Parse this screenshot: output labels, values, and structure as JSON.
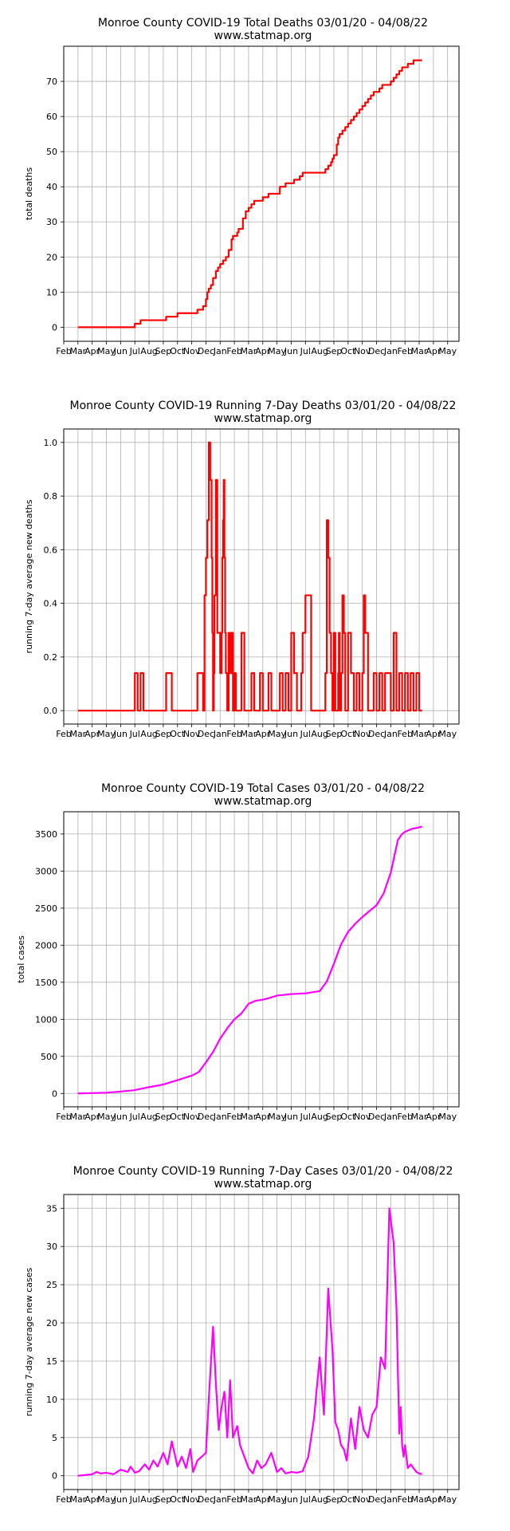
{
  "chart_data": [
    {
      "type": "line",
      "title": "Monroe County COVID-19 Total Deaths 03/01/20 - 04/08/22",
      "subtitle": "www.statmap.org",
      "xlabel": "",
      "ylabel": "total deaths",
      "ylim": [
        -4,
        80
      ],
      "yticks": [
        0,
        10,
        20,
        30,
        40,
        50,
        60,
        70
      ],
      "xlim": [
        -1,
        26.8
      ],
      "xticks": [
        "Feb",
        "Mar",
        "Apr",
        "May",
        "Jun",
        "Jul",
        "Aug",
        "Sep",
        "Oct",
        "Nov",
        "Dec",
        "Jan",
        "Feb",
        "Mar",
        "Apr",
        "May",
        "Jun",
        "Jul",
        "Aug",
        "Sep",
        "Oct",
        "Nov",
        "Dec",
        "Jan",
        "Feb",
        "Mar",
        "Apr",
        "May"
      ],
      "grid": true,
      "color": "#ff0000",
      "step": true,
      "series": [
        {
          "x": [
            0.0,
            3.8,
            4.0,
            4.2,
            4.4,
            6.0,
            6.2,
            6.6,
            7.0,
            8.2,
            8.4,
            8.6,
            8.8,
            9.0,
            9.1,
            9.2,
            9.35,
            9.5,
            9.7,
            9.85,
            10.0,
            10.1,
            10.2,
            10.4,
            10.6,
            10.8,
            10.9,
            11.0,
            11.2,
            11.3,
            11.6,
            11.8,
            12.0,
            12.2,
            12.4,
            12.6,
            12.8,
            13.0,
            13.2,
            13.4,
            13.6,
            14.0,
            14.2,
            14.4,
            14.6,
            15.0,
            15.2,
            15.6,
            15.8,
            16.2,
            16.4,
            16.8,
            17.0,
            17.2,
            17.4,
            17.6,
            17.8,
            17.9,
            18.0,
            18.1,
            18.2,
            18.3,
            18.4,
            18.6,
            18.8,
            19.0,
            19.2,
            19.4,
            19.6,
            19.8,
            20.0,
            20.2,
            20.4,
            20.6,
            20.8,
            21.0,
            21.2,
            21.4,
            22.0,
            22.2,
            22.4,
            22.6,
            22.8,
            23.0,
            23.2,
            23.4,
            23.6,
            24.0,
            24.2
          ],
          "y": [
            0,
            0,
            1,
            1,
            2,
            2,
            3,
            3,
            4,
            4,
            5,
            5,
            6,
            8,
            10,
            11,
            12,
            14,
            16,
            17,
            18,
            18,
            19,
            20,
            22,
            25,
            26,
            26,
            27,
            28,
            31,
            33,
            34,
            35,
            36,
            36,
            36,
            37,
            37,
            38,
            38,
            38,
            40,
            40,
            41,
            41,
            42,
            43,
            44,
            44,
            44,
            44,
            44,
            44,
            45,
            46,
            47,
            48,
            49,
            49,
            52,
            54,
            55,
            56,
            57,
            58,
            59,
            60,
            61,
            62,
            63,
            64,
            65,
            66,
            67,
            67,
            68,
            69,
            70,
            71,
            72,
            73,
            74,
            74,
            75,
            75,
            76,
            76,
            76
          ]
        }
      ]
    },
    {
      "type": "line",
      "title": "Monroe County COVID-19 Running 7-Day Deaths 03/01/20 - 04/08/22",
      "subtitle": "www.statmap.org",
      "xlabel": "",
      "ylabel": "running 7-day average new deaths",
      "ylim": [
        -0.05,
        1.05
      ],
      "yticks": [
        0.0,
        0.2,
        0.4,
        0.6,
        0.8,
        1.0
      ],
      "xlim": [
        -1,
        26.8
      ],
      "xticks": [
        "Feb",
        "Mar",
        "Apr",
        "May",
        "Jun",
        "Jul",
        "Aug",
        "Sep",
        "Oct",
        "Nov",
        "Dec",
        "Jan",
        "Feb",
        "Mar",
        "Apr",
        "May",
        "Jun",
        "Jul",
        "Aug",
        "Sep",
        "Oct",
        "Nov",
        "Dec",
        "Jan",
        "Feb",
        "Mar",
        "Apr",
        "May"
      ],
      "grid": true,
      "color": "#ff0000",
      "step": true,
      "series": [
        {
          "x": [
            0.0,
            3.8,
            4.0,
            4.2,
            4.4,
            4.6,
            6.0,
            6.2,
            6.4,
            6.6,
            8.2,
            8.4,
            8.6,
            8.8,
            8.9,
            9.0,
            9.1,
            9.2,
            9.3,
            9.4,
            9.45,
            9.5,
            9.55,
            9.6,
            9.7,
            9.8,
            10.0,
            10.1,
            10.15,
            10.2,
            10.25,
            10.3,
            10.35,
            10.4,
            10.5,
            10.6,
            10.7,
            10.8,
            10.9,
            11.0,
            11.1,
            11.2,
            11.3,
            11.5,
            11.7,
            11.9,
            12.0,
            12.2,
            12.4,
            12.6,
            12.8,
            13.0,
            13.2,
            13.4,
            13.6,
            13.8,
            14.2,
            14.4,
            14.6,
            14.8,
            15.0,
            15.2,
            15.4,
            15.6,
            15.7,
            15.8,
            16.0,
            16.4,
            17.4,
            17.5,
            17.6,
            17.7,
            17.8,
            17.9,
            18.0,
            18.1,
            18.2,
            18.3,
            18.35,
            18.4,
            18.5,
            18.6,
            18.7,
            18.8,
            19.0,
            19.2,
            19.4,
            19.6,
            19.8,
            20.0,
            20.1,
            20.2,
            20.4,
            20.6,
            20.8,
            21.0,
            21.2,
            21.4,
            21.6,
            22.0,
            22.2,
            22.4,
            22.6,
            22.8,
            23.0,
            23.2,
            23.4,
            23.6,
            23.8,
            24.0,
            24.2
          ],
          "y": [
            0,
            0,
            0.14,
            0,
            0.14,
            0,
            0,
            0.14,
            0.14,
            0,
            0,
            0.14,
            0.14,
            0,
            0.43,
            0.57,
            0.71,
            1.0,
            0.86,
            0.57,
            0.29,
            0,
            0.14,
            0.43,
            0.86,
            0.29,
            0.14,
            0.29,
            0.57,
            0.71,
            0.86,
            0.57,
            0.29,
            0.14,
            0,
            0.29,
            0.14,
            0.29,
            0,
            0.14,
            0,
            0,
            0,
            0.29,
            0,
            0,
            0,
            0.14,
            0,
            0,
            0.14,
            0,
            0,
            0.14,
            0,
            0,
            0.14,
            0,
            0.14,
            0,
            0.29,
            0.14,
            0,
            0,
            0.14,
            0.29,
            0.43,
            0,
            0.14,
            0.71,
            0.57,
            0.29,
            0.14,
            0,
            0.29,
            0,
            0,
            0.14,
            0.29,
            0,
            0.14,
            0.43,
            0.29,
            0,
            0.29,
            0.14,
            0,
            0.14,
            0,
            0.14,
            0.43,
            0.29,
            0,
            0,
            0.14,
            0,
            0.14,
            0,
            0.14,
            0,
            0.29,
            0,
            0.14,
            0,
            0.14,
            0,
            0.14,
            0,
            0.14,
            0,
            0
          ]
        }
      ]
    },
    {
      "type": "line",
      "title": "Monroe County COVID-19 Total Cases 03/01/20 - 04/08/22",
      "subtitle": "www.statmap.org",
      "xlabel": "",
      "ylabel": "total cases",
      "ylim": [
        -180,
        3800
      ],
      "yticks": [
        0,
        500,
        1000,
        1500,
        2000,
        2500,
        3000,
        3500
      ],
      "xlim": [
        -1,
        26.8
      ],
      "xticks": [
        "Feb",
        "Mar",
        "Apr",
        "May",
        "Jun",
        "Jul",
        "Aug",
        "Sep",
        "Oct",
        "Nov",
        "Dec",
        "Jan",
        "Feb",
        "Mar",
        "Apr",
        "May",
        "Jun",
        "Jul",
        "Aug",
        "Sep",
        "Oct",
        "Nov",
        "Dec",
        "Jan",
        "Feb",
        "Mar",
        "Apr",
        "May"
      ],
      "grid": true,
      "color": "#ff00ff",
      "step": false,
      "series": [
        {
          "x": [
            0,
            1,
            2,
            3,
            4,
            5,
            6,
            7,
            7.5,
            8,
            8.5,
            9,
            9.5,
            10,
            10.5,
            11,
            11.5,
            12,
            12.5,
            13,
            13.5,
            14,
            15,
            16,
            17,
            17.5,
            18,
            18.5,
            19,
            19.5,
            20,
            21,
            21.5,
            22,
            22.5,
            22.8,
            23,
            23.5,
            24,
            24.2
          ],
          "y": [
            0,
            5,
            10,
            25,
            45,
            85,
            120,
            180,
            210,
            240,
            290,
            420,
            560,
            740,
            880,
            1000,
            1080,
            1210,
            1250,
            1265,
            1290,
            1320,
            1340,
            1350,
            1380,
            1510,
            1750,
            2010,
            2180,
            2290,
            2380,
            2540,
            2700,
            2980,
            3420,
            3500,
            3530,
            3570,
            3590,
            3600
          ]
        }
      ]
    },
    {
      "type": "line",
      "title": "Monroe County COVID-19 Running 7-Day Cases 03/01/20 - 04/08/22",
      "subtitle": "www.statmap.org",
      "xlabel": "",
      "ylabel": "running 7-day average new cases",
      "ylim": [
        -1.8,
        36.8
      ],
      "yticks": [
        0,
        5,
        10,
        15,
        20,
        25,
        30,
        35
      ],
      "xlim": [
        -1,
        26.8
      ],
      "xticks": [
        "Feb",
        "Mar",
        "Apr",
        "May",
        "Jun",
        "Jul",
        "Aug",
        "Sep",
        "Oct",
        "Nov",
        "Dec",
        "Jan",
        "Feb",
        "Mar",
        "Apr",
        "May",
        "Jun",
        "Jul",
        "Aug",
        "Sep",
        "Oct",
        "Nov",
        "Dec",
        "Jan",
        "Feb",
        "Mar",
        "Apr",
        "May"
      ],
      "grid": true,
      "color": "#ff00ff",
      "step": false,
      "series": [
        {
          "x": [
            0,
            1,
            1.3,
            1.6,
            2,
            2.5,
            3,
            3.5,
            3.7,
            4,
            4.3,
            4.7,
            5,
            5.3,
            5.6,
            6,
            6.3,
            6.6,
            7,
            7.3,
            7.6,
            7.9,
            8.1,
            8.4,
            8.7,
            9.0,
            9.2,
            9.5,
            9.7,
            9.9,
            10.1,
            10.3,
            10.5,
            10.7,
            10.9,
            11.2,
            11.4,
            11.7,
            12.0,
            12.3,
            12.6,
            12.9,
            13.2,
            13.6,
            14.0,
            14.3,
            14.6,
            15.0,
            15.4,
            15.8,
            16.2,
            16.6,
            17.0,
            17.3,
            17.6,
            17.9,
            18.1,
            18.3,
            18.5,
            18.7,
            18.9,
            19.2,
            19.5,
            19.8,
            20.1,
            20.4,
            20.7,
            21.0,
            21.3,
            21.6,
            21.9,
            22.2,
            22.4,
            22.6,
            22.7,
            22.8,
            22.9,
            23.0,
            23.2,
            23.4,
            23.6,
            23.8,
            24.0,
            24.2
          ],
          "y": [
            0,
            0.2,
            0.5,
            0.3,
            0.4,
            0.2,
            0.8,
            0.5,
            1.2,
            0.4,
            0.6,
            1.5,
            0.8,
            2.0,
            1.2,
            3.0,
            1.5,
            4.5,
            1.2,
            2.5,
            1.0,
            3.5,
            0.5,
            2.0,
            2.5,
            3.0,
            10,
            19.5,
            12,
            6,
            9,
            11,
            5,
            12.5,
            5,
            6.5,
            4,
            2.5,
            1,
            0.3,
            2,
            1,
            1.5,
            3,
            0.5,
            1,
            0.3,
            0.5,
            0.4,
            0.6,
            2.5,
            7.5,
            15.5,
            8,
            24.5,
            16.5,
            7,
            6,
            4,
            3.5,
            2,
            7.5,
            3.5,
            9,
            6,
            5,
            8,
            9,
            15.5,
            14,
            35,
            30.5,
            22,
            5.5,
            9,
            4,
            2.5,
            4,
            1,
            1.5,
            1,
            0.5,
            0.3,
            0.2
          ]
        }
      ]
    }
  ]
}
